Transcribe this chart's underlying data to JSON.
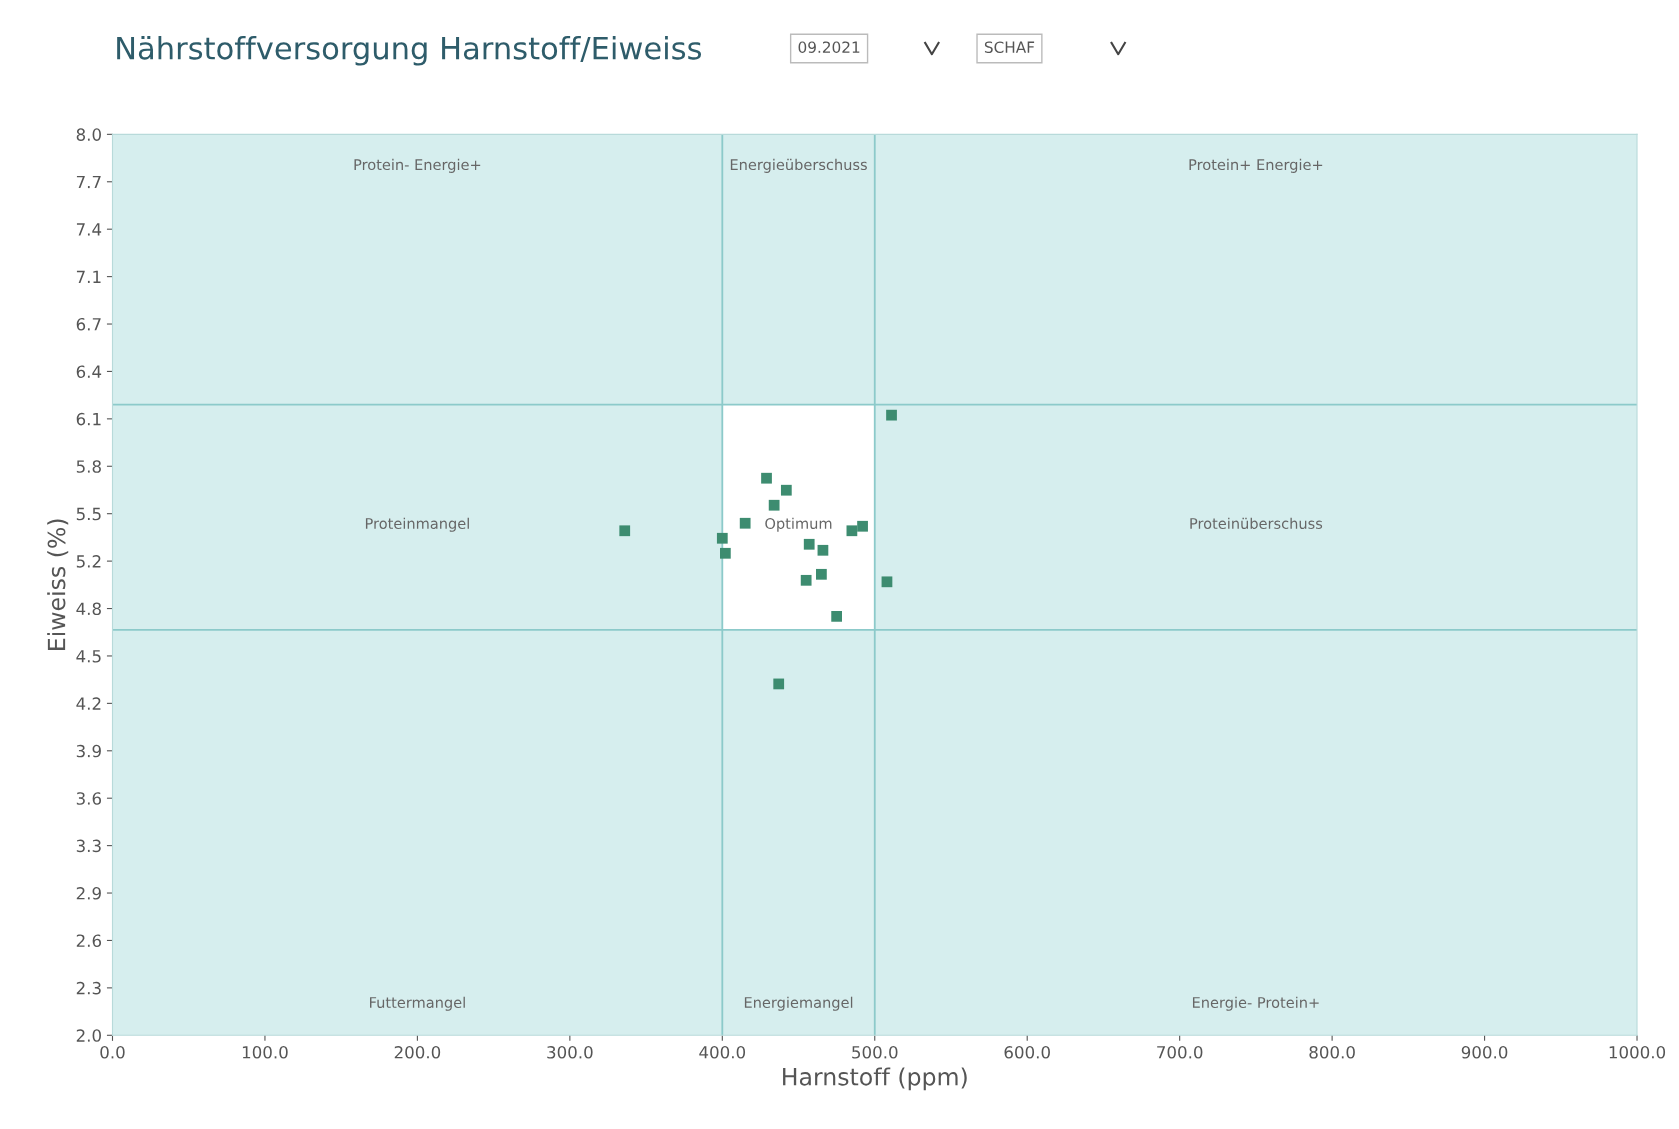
{
  "chart_data": {
    "type": "scatter",
    "title": "Nährstoffversorgung Harnstoff/Eiweiss",
    "xlabel": "Harnstoff (ppm)",
    "ylabel": "Eiweiss (%)",
    "annotations": [
      "09.2021",
      "SCHAF",
      "Protein- Energie+",
      "Energieüberschuss",
      "Protein+ Energie+",
      "Proteinmangel",
      "Optimum",
      "Proteinüberschuss",
      "Futtermangel",
      "Energiemangel",
      "Energie- Protein+"
    ],
    "series": [
      {
        "color": "#3d8c70",
        "x": [
          336,
          400,
          402,
          415,
          429,
          434,
          442,
          437,
          455,
          457,
          465,
          466,
          475,
          485,
          492,
          508,
          511
        ],
        "values": [
          5.36,
          5.31,
          5.21,
          5.41,
          5.71,
          5.53,
          5.63,
          4.34,
          5.03,
          5.27,
          5.07,
          5.23,
          4.79,
          5.36,
          5.39,
          5.02,
          6.13
        ]
      }
    ],
    "marker": "square",
    "grid": false,
    "xlim": [
      0,
      1000
    ],
    "xticks": [
      {
        "value": 0,
        "label": "0.0"
      },
      {
        "value": 100,
        "label": "100.0"
      },
      {
        "value": 200,
        "label": "200.0"
      },
      {
        "value": 300,
        "label": "300.0"
      },
      {
        "value": 400,
        "label": "400.0"
      },
      {
        "value": 500,
        "label": "500.0"
      },
      {
        "value": 600,
        "label": "600.0"
      },
      {
        "value": 700,
        "label": "700.0"
      },
      {
        "value": 800,
        "label": "800.0"
      },
      {
        "value": 900,
        "label": "900.0"
      },
      {
        "value": 1000,
        "label": "1000.0"
      }
    ],
    "ylim": [
      2,
      8
    ],
    "yticks": [
      {
        "value": 2,
        "label": "2.0"
      },
      {
        "value": 2.3158,
        "label": "2.3"
      },
      {
        "value": 2.6316,
        "label": "2.6"
      },
      {
        "value": 2.9474,
        "label": "2.9"
      },
      {
        "value": 3.2632,
        "label": "3.3"
      },
      {
        "value": 3.5789,
        "label": "3.6"
      },
      {
        "value": 3.8947,
        "label": "3.9"
      },
      {
        "value": 4.2105,
        "label": "4.2"
      },
      {
        "value": 4.5263,
        "label": "4.5"
      },
      {
        "value": 4.8421,
        "label": "4.8"
      },
      {
        "value": 5.1579,
        "label": "5.2"
      },
      {
        "value": 5.4737,
        "label": "5.5"
      },
      {
        "value": 5.7895,
        "label": "5.8"
      },
      {
        "value": 6.1053,
        "label": "6.1"
      },
      {
        "value": 6.4211,
        "label": "6.4"
      },
      {
        "value": 6.7368,
        "label": "6.7"
      },
      {
        "value": 7.0526,
        "label": "7.1"
      },
      {
        "value": 7.3684,
        "label": "7.4"
      },
      {
        "value": 7.6842,
        "label": "7.7"
      },
      {
        "value": 8,
        "label": "8.0"
      }
    ],
    "ref_lines": [
      {
        "axis": "x",
        "value": 400,
        "color": "#8ccaca"
      },
      {
        "axis": "x",
        "value": 500,
        "color": "#8ccaca"
      },
      {
        "axis": "y",
        "value": 6.2,
        "color": "#8ccaca"
      },
      {
        "axis": "y",
        "value": 4.7,
        "color": "#8ccaca"
      }
    ]
  }
}
